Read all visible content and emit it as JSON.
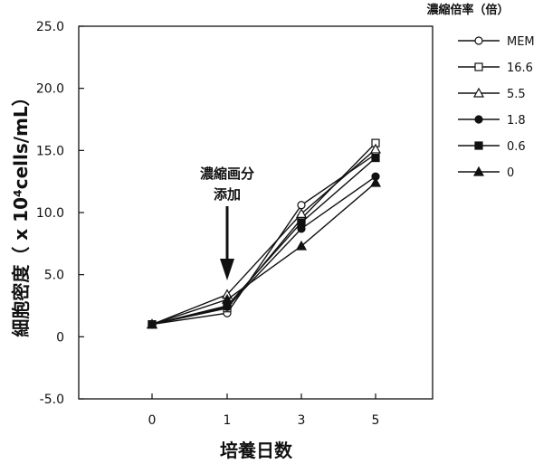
{
  "chart_data": {
    "type": "line",
    "title": "",
    "xlabel": "培養日数",
    "ylabel": "細胞密度（ x 10⁴cells/mL）",
    "ylim": [
      -5,
      25
    ],
    "ytick_labels": [
      "-5.0",
      "0",
      "5.0",
      "10.0",
      "15.0",
      "20.0",
      "25.0"
    ],
    "categories": [
      "0",
      "1",
      "3",
      "5"
    ],
    "legend_title": "濃縮倍率（倍）",
    "legend_position": "top-right",
    "annotation": [
      "濃縮画分",
      "添加"
    ],
    "series": [
      {
        "name": "MEM",
        "marker": "circle-open",
        "values": [
          1.0,
          1.9,
          10.6,
          14.7
        ]
      },
      {
        "name": "16.6",
        "marker": "square-open",
        "values": [
          1.0,
          2.3,
          9.5,
          15.6
        ]
      },
      {
        "name": "5.5",
        "marker": "triangle-open",
        "values": [
          1.0,
          3.4,
          9.9,
          15.1
        ]
      },
      {
        "name": "1.8",
        "marker": "circle-filled",
        "values": [
          1.0,
          2.4,
          8.7,
          12.9
        ]
      },
      {
        "name": "0.6",
        "marker": "square-filled",
        "values": [
          1.0,
          2.5,
          9.2,
          14.4
        ]
      },
      {
        "name": "0",
        "marker": "triangle-filled",
        "values": [
          1.0,
          3.0,
          7.3,
          12.4
        ]
      }
    ]
  }
}
